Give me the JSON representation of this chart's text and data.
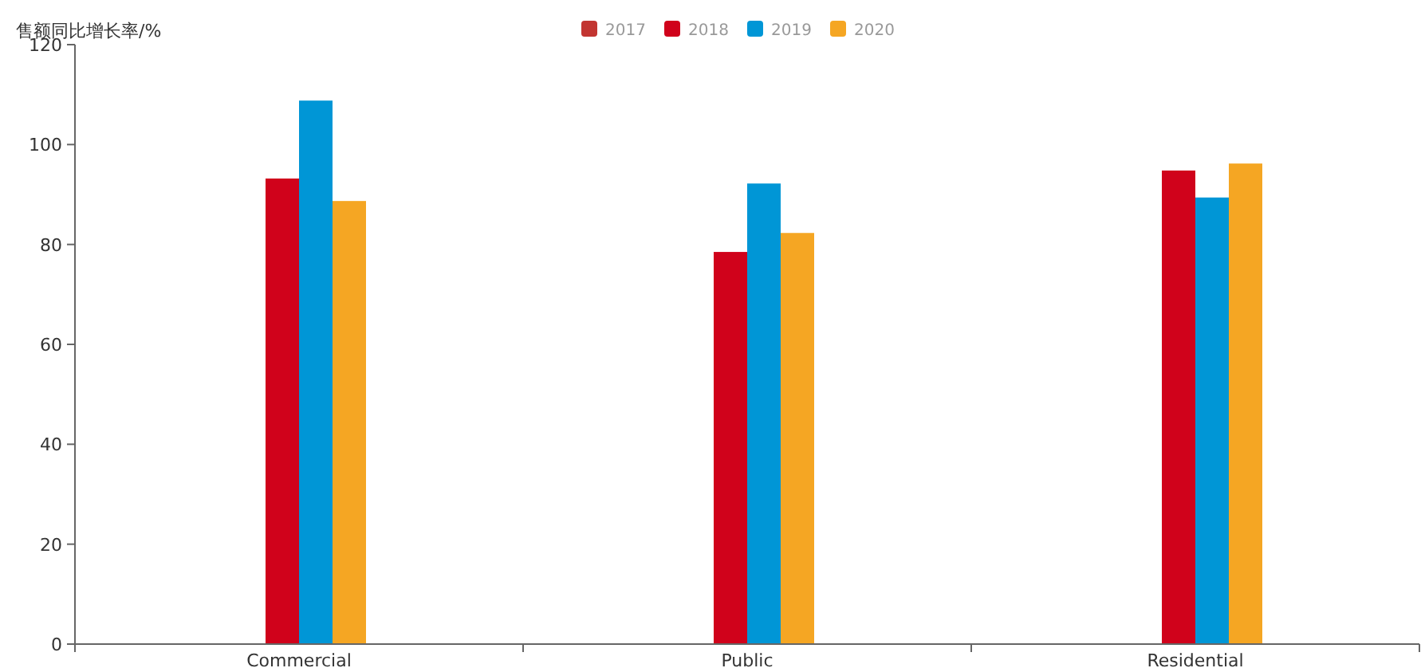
{
  "chart_data": {
    "type": "bar",
    "ylabel": "售额同比增长率/%",
    "categories": [
      "Commercial",
      "Public",
      "Residential"
    ],
    "series": [
      {
        "name": "2017",
        "color": "#c23531",
        "values": [
          null,
          null,
          null
        ]
      },
      {
        "name": "2018",
        "color": "#d0021b",
        "values": [
          93.2,
          78.5,
          94.8
        ]
      },
      {
        "name": "2019",
        "color": "#0096d6",
        "values": [
          108.8,
          92.2,
          89.4
        ]
      },
      {
        "name": "2020",
        "color": "#f5a623",
        "values": [
          88.7,
          82.3,
          96.2
        ]
      }
    ],
    "ylim": [
      0,
      120
    ],
    "yticks": [
      0,
      20,
      40,
      60,
      80,
      100,
      120
    ],
    "grid": false,
    "legend": "top"
  }
}
